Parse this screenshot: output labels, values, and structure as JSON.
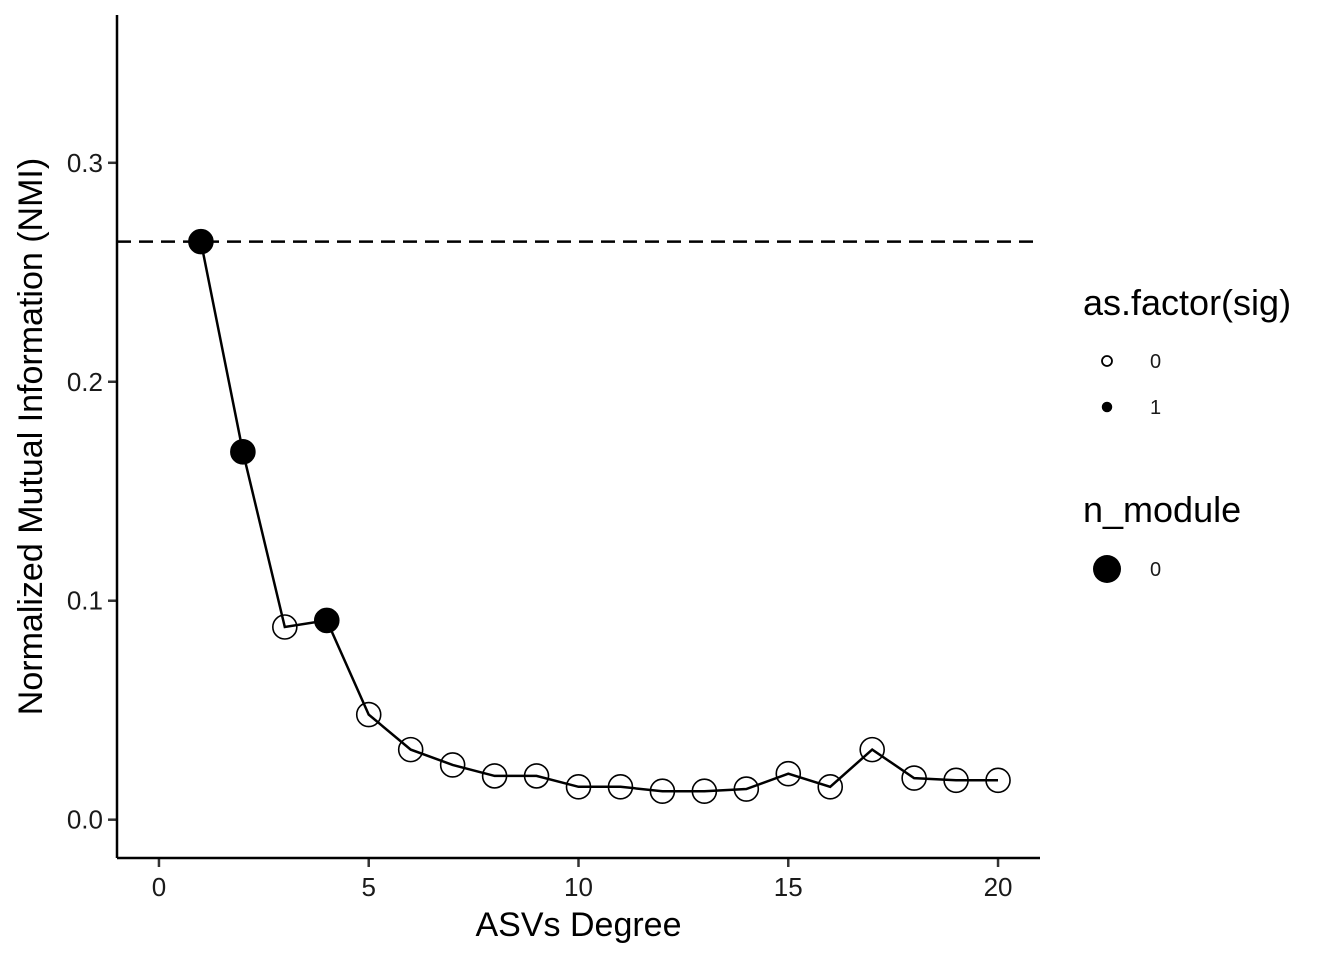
{
  "chart_data": {
    "type": "scatter",
    "xlabel": "ASVs Degree",
    "ylabel": "Normalized Mutual Information (NMI)",
    "xlim": [
      -1,
      21
    ],
    "ylim": [
      -0.0175,
      0.3675
    ],
    "x_ticks": [
      0,
      5,
      10,
      15,
      20
    ],
    "x_tick_labels": [
      "0",
      "5",
      "10",
      "15",
      "20"
    ],
    "y_ticks": [
      0.0,
      0.1,
      0.2,
      0.3
    ],
    "y_tick_labels": [
      "0.0",
      "0.1",
      "0.2",
      "0.3"
    ],
    "grid": false,
    "reference_line": {
      "y": 0.264,
      "style": "dashed"
    },
    "series": [
      {
        "x": [
          1,
          2,
          3,
          4,
          5,
          6,
          7,
          8,
          9,
          10,
          11,
          12,
          13,
          14,
          15,
          16,
          17,
          18,
          19,
          20
        ],
        "y": [
          0.264,
          0.168,
          0.088,
          0.091,
          0.048,
          0.032,
          0.025,
          0.02,
          0.02,
          0.015,
          0.015,
          0.013,
          0.013,
          0.014,
          0.021,
          0.015,
          0.032,
          0.019,
          0.018,
          0.018
        ],
        "sig": [
          1,
          1,
          0,
          1,
          0,
          0,
          0,
          0,
          0,
          0,
          0,
          0,
          0,
          0,
          0,
          0,
          0,
          0,
          0,
          0
        ]
      }
    ],
    "legend": {
      "position": "right",
      "groups": [
        {
          "title": "as.factor(sig)",
          "entries": [
            {
              "label": "0",
              "filled": false
            },
            {
              "label": "1",
              "filled": true
            }
          ]
        },
        {
          "title": "n_module",
          "entries": [
            {
              "label": "0",
              "filled": true
            }
          ]
        }
      ]
    }
  }
}
